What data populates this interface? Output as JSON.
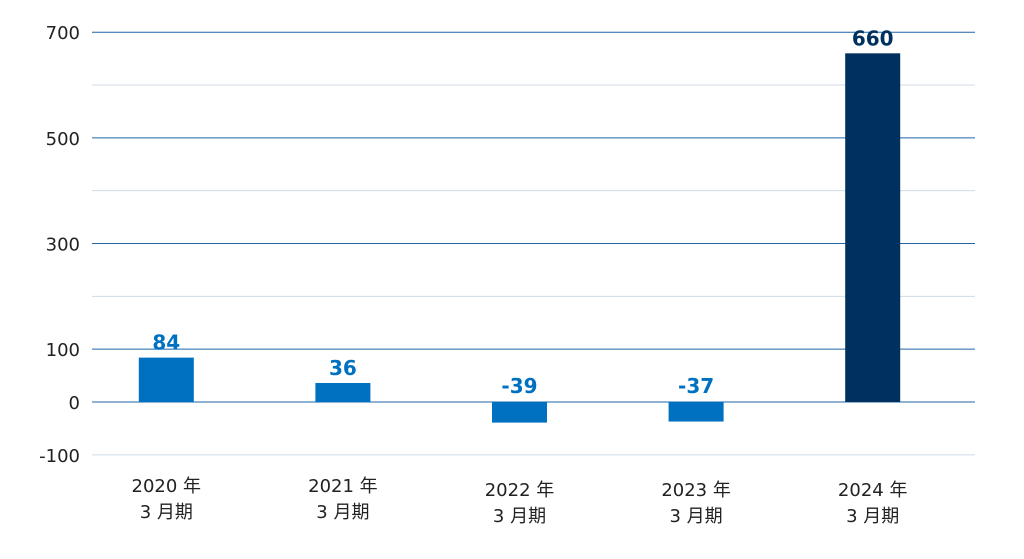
{
  "chart_data": {
    "type": "bar",
    "title": "",
    "xlabel": "",
    "ylabel": "",
    "categories": [
      [
        "2020 年",
        "3 月期"
      ],
      [
        "2021 年",
        "3 月期"
      ],
      [
        "2022 年",
        "3 月期"
      ],
      [
        "2023 年",
        "3 月期"
      ],
      [
        "2024 年",
        "3 月期"
      ]
    ],
    "values": [
      84,
      36,
      -39,
      -37,
      660
    ],
    "value_labels": [
      "84",
      "36",
      "-39",
      "-37",
      "660"
    ],
    "y_ticks": [
      -100,
      0,
      100,
      300,
      500,
      700
    ],
    "y_tick_labels": [
      "-100",
      "0",
      "100",
      "300",
      "500",
      "700"
    ],
    "ylim": [
      -100,
      700
    ],
    "grid": true,
    "legend": "none",
    "colors": {
      "bar_default": "#0070c0",
      "bar_highlight": "#00305e",
      "label_default": "#0070c0",
      "label_highlight": "#00305e",
      "grid_major": "#1f66a6",
      "grid_minor": "#cfdbe6",
      "tick_text": "#222222"
    },
    "highlight_index": 4
  }
}
